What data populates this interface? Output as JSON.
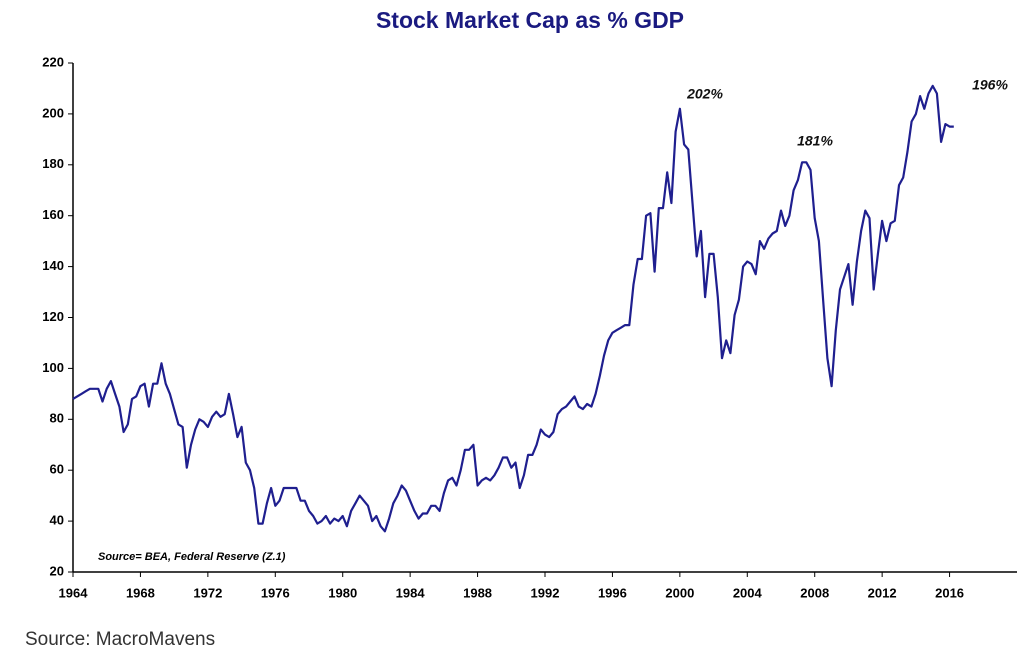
{
  "chart_data": {
    "type": "line",
    "title": "Stock Market Cap as % GDP",
    "annotations": [
      "202%",
      "181%",
      "196%"
    ],
    "source_note": "Source= BEA, Federal Reserve (Z.1)",
    "color": "#1f1f8f",
    "grid": false,
    "xlim": [
      1964,
      2020
    ],
    "xticks": [
      1964,
      1968,
      1972,
      1976,
      1980,
      1984,
      1988,
      1992,
      1996,
      2000,
      2004,
      2008,
      2012,
      2016
    ],
    "ylim": [
      20,
      220
    ],
    "yticks": [
      20,
      40,
      60,
      80,
      100,
      120,
      140,
      160,
      180,
      200,
      220
    ],
    "x": [
      1964,
      1964.25,
      1964.5,
      1964.75,
      1965,
      1965.25,
      1965.5,
      1965.75,
      1966,
      1966.25,
      1966.5,
      1966.75,
      1967,
      1967.25,
      1967.5,
      1967.75,
      1968,
      1968.25,
      1968.5,
      1968.75,
      1969,
      1969.25,
      1969.5,
      1969.75,
      1970,
      1970.25,
      1970.5,
      1970.75,
      1971,
      1971.25,
      1971.5,
      1971.75,
      1972,
      1972.25,
      1972.5,
      1972.75,
      1973,
      1973.25,
      1973.5,
      1973.75,
      1974,
      1974.25,
      1974.5,
      1974.75,
      1975,
      1975.25,
      1975.5,
      1975.75,
      1976,
      1976.25,
      1976.5,
      1976.75,
      1977,
      1977.25,
      1977.5,
      1977.75,
      1978,
      1978.25,
      1978.5,
      1978.75,
      1979,
      1979.25,
      1979.5,
      1979.75,
      1980,
      1980.25,
      1980.5,
      1980.75,
      1981,
      1981.25,
      1981.5,
      1981.75,
      1982,
      1982.25,
      1982.5,
      1982.75,
      1983,
      1983.25,
      1983.5,
      1983.75,
      1984,
      1984.25,
      1984.5,
      1984.75,
      1985,
      1985.25,
      1985.5,
      1985.75,
      1986,
      1986.25,
      1986.5,
      1986.75,
      1987,
      1987.25,
      1987.5,
      1987.75,
      1988,
      1988.25,
      1988.5,
      1988.75,
      1989,
      1989.25,
      1989.5,
      1989.75,
      1990,
      1990.25,
      1990.5,
      1990.75,
      1991,
      1991.25,
      1991.5,
      1991.75,
      1992,
      1992.25,
      1992.5,
      1992.75,
      1993,
      1993.25,
      1993.5,
      1993.75,
      1994,
      1994.25,
      1994.5,
      1994.75,
      1995,
      1995.25,
      1995.5,
      1995.75,
      1996,
      1996.25,
      1996.5,
      1996.75,
      1997,
      1997.25,
      1997.5,
      1997.75,
      1998,
      1998.25,
      1998.5,
      1998.75,
      1999,
      1999.25,
      1999.5,
      1999.75,
      2000,
      2000.25,
      2000.5,
      2000.75,
      2001,
      2001.25,
      2001.5,
      2001.75,
      2002,
      2002.25,
      2002.5,
      2002.75,
      2003,
      2003.25,
      2003.5,
      2003.75,
      2004,
      2004.25,
      2004.5,
      2004.75,
      2005,
      2005.25,
      2005.5,
      2005.75,
      2006,
      2006.25,
      2006.5,
      2006.75,
      2007,
      2007.25,
      2007.5,
      2007.75,
      2008,
      2008.25,
      2008.5,
      2008.75,
      2009,
      2009.25,
      2009.5,
      2009.75,
      2010,
      2010.25,
      2010.5,
      2010.75,
      2011,
      2011.25,
      2011.5,
      2011.75,
      2012,
      2012.25,
      2012.5,
      2012.75,
      2013,
      2013.25,
      2013.5,
      2013.75,
      2014,
      2014.25,
      2014.5,
      2014.75,
      2015,
      2015.25,
      2015.5,
      2015.75,
      2016,
      2016.25
    ],
    "values": [
      88,
      89,
      90,
      91,
      92,
      92,
      92,
      87,
      92,
      95,
      90,
      85,
      75,
      78,
      88,
      89,
      93,
      94,
      85,
      94,
      94,
      102,
      94,
      90,
      84,
      78,
      77,
      61,
      70,
      76,
      80,
      79,
      77,
      81,
      83,
      81,
      82,
      90,
      82,
      73,
      77,
      63,
      60,
      53,
      39,
      39,
      47,
      53,
      46,
      48,
      53,
      53,
      53,
      53,
      48,
      48,
      44,
      42,
      39,
      40,
      42,
      39,
      41,
      40,
      42,
      38,
      44,
      47,
      50,
      48,
      46,
      40,
      42,
      38,
      36,
      41,
      47,
      50,
      54,
      52,
      48,
      44,
      41,
      43,
      43,
      46,
      46,
      44,
      51,
      56,
      57,
      54,
      60,
      68,
      68,
      70,
      54,
      56,
      57,
      56,
      58,
      61,
      65,
      65,
      61,
      63,
      53,
      58,
      66,
      66,
      70,
      76,
      74,
      73,
      75,
      82,
      84,
      85,
      87,
      89,
      85,
      84,
      86,
      85,
      90,
      97,
      105,
      111,
      114,
      115,
      116,
      117,
      117,
      133,
      143,
      143,
      160,
      161,
      138,
      163,
      163,
      177,
      165,
      193,
      202,
      188,
      186,
      165,
      144,
      154,
      128,
      145,
      145,
      128,
      104,
      111,
      106,
      121,
      127,
      140,
      142,
      141,
      137,
      150,
      147,
      151,
      153,
      154,
      162,
      156,
      160,
      170,
      174,
      181,
      181,
      178,
      159,
      150,
      127,
      104,
      93,
      115,
      131,
      136,
      141,
      125,
      142,
      154,
      162,
      159,
      131,
      145,
      158,
      150,
      157,
      158,
      172,
      175,
      185,
      197,
      200,
      207,
      202,
      208,
      211,
      208,
      189,
      196,
      195,
      195
    ]
  },
  "footer": "Source: MacroMavens"
}
